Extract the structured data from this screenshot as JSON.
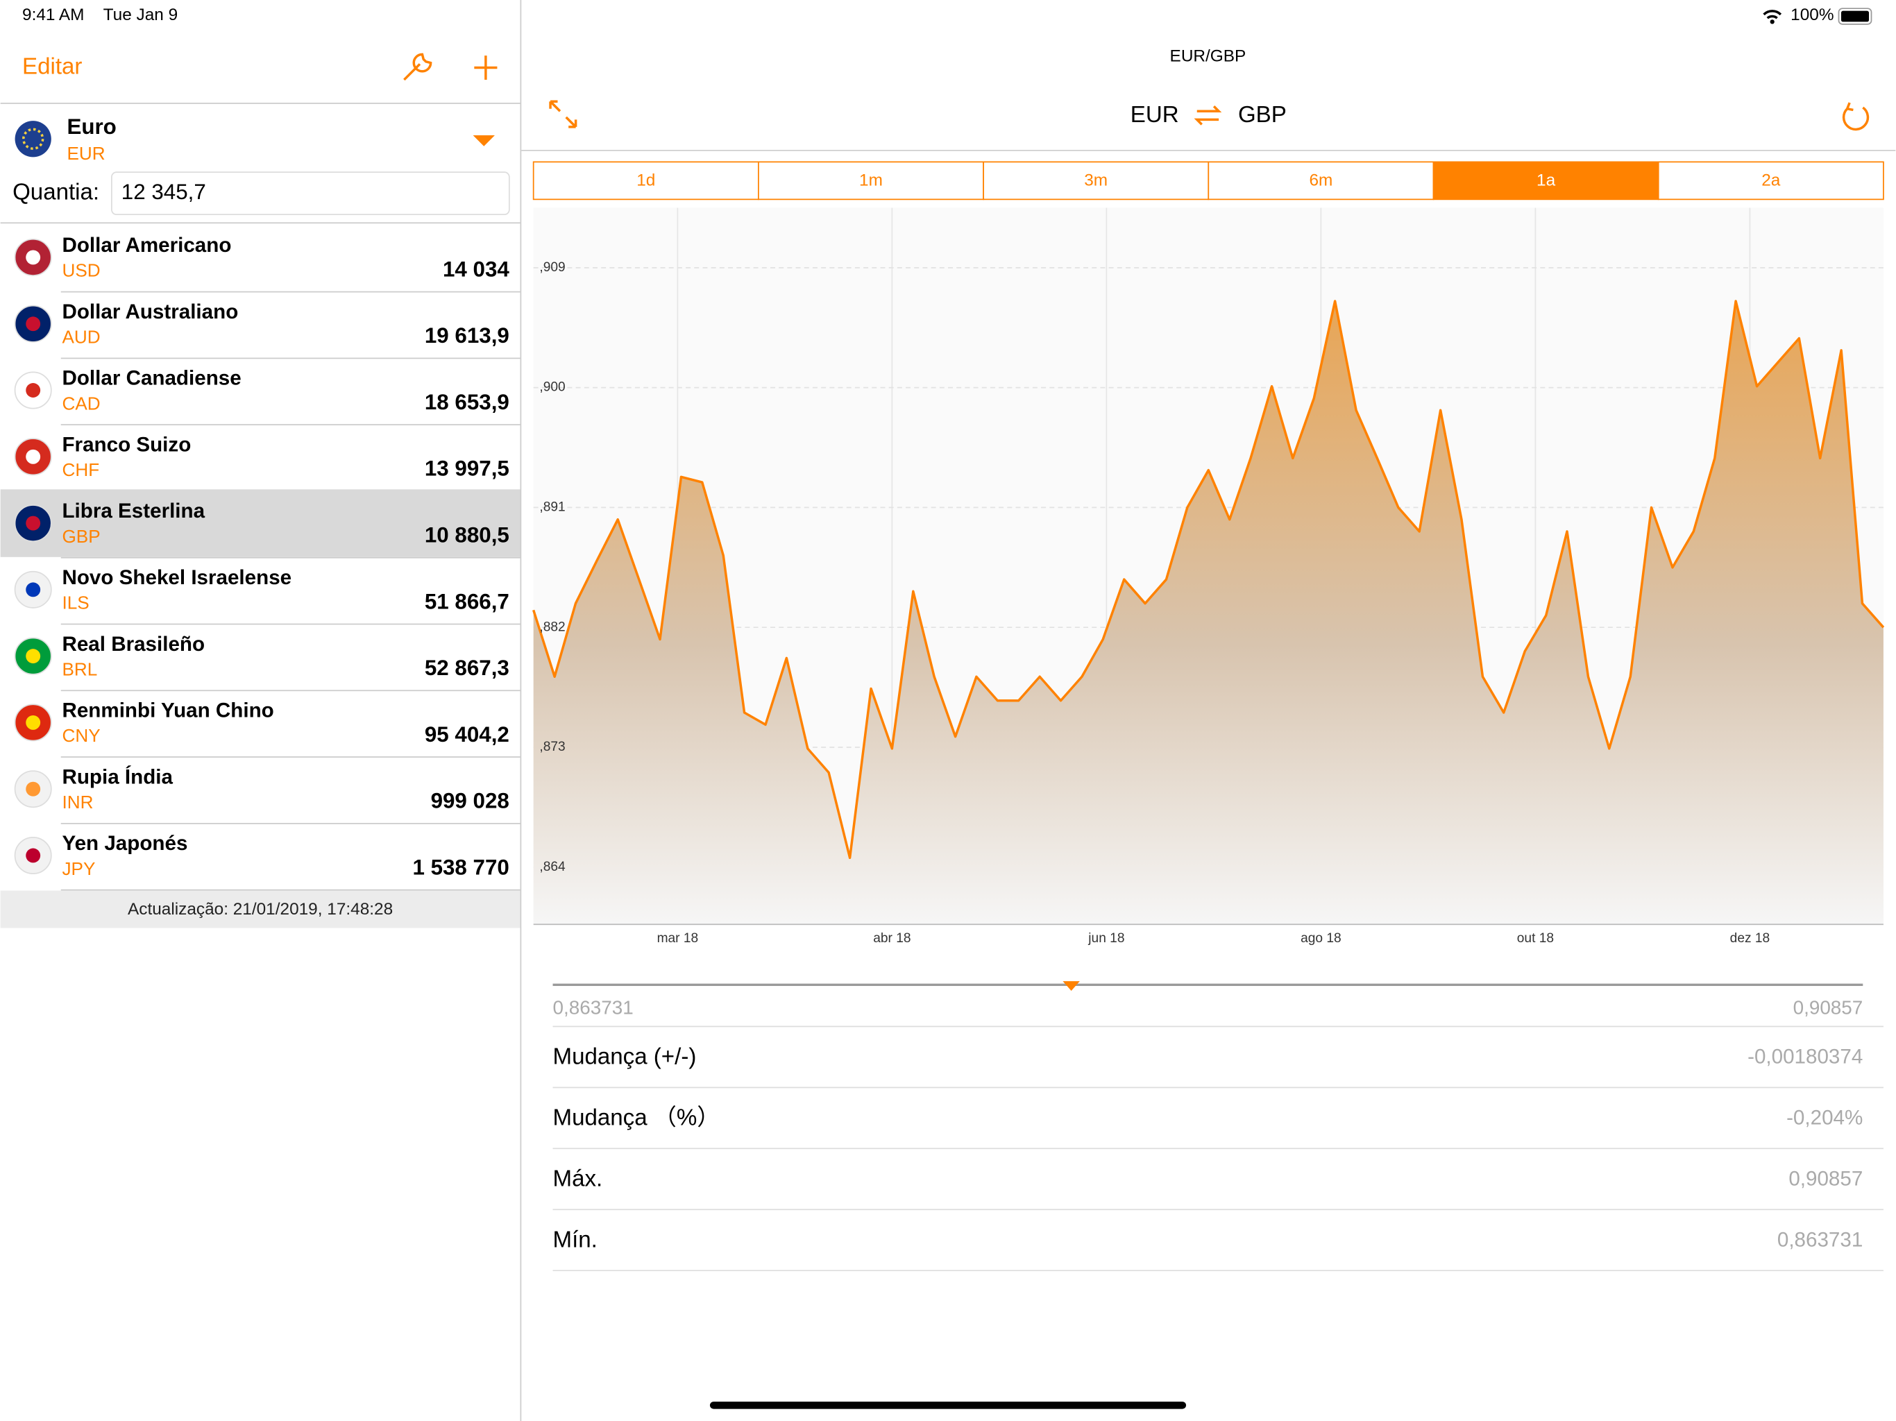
{
  "status_bar": {
    "time": "9:41 AM",
    "date": "Tue Jan 9",
    "battery": "100%"
  },
  "sidebar": {
    "edit": "Editar",
    "base": {
      "name": "Euro",
      "code": "EUR"
    },
    "amount_label": "Quantia:",
    "amount": "12 345,7",
    "rows": [
      {
        "name": "Dollar Americano",
        "code": "USD",
        "value": "14 034"
      },
      {
        "name": "Dollar Australiano",
        "code": "AUD",
        "value": "19 613,9"
      },
      {
        "name": "Dollar Canadiense",
        "code": "CAD",
        "value": "18 653,9"
      },
      {
        "name": "Franco Suizo",
        "code": "CHF",
        "value": "13 997,5"
      },
      {
        "name": "Libra Esterlina",
        "code": "GBP",
        "value": "10 880,5"
      },
      {
        "name": "Novo Shekel Israelense",
        "code": "ILS",
        "value": "51 866,7"
      },
      {
        "name": "Real Brasileño",
        "code": "BRL",
        "value": "52 867,3"
      },
      {
        "name": "Renminbi Yuan Chino",
        "code": "CNY",
        "value": "95 404,2"
      },
      {
        "name": "Rupia Índia",
        "code": "INR",
        "value": "999 028"
      },
      {
        "name": "Yen Japonés",
        "code": "JPY",
        "value": "1 538 770"
      }
    ],
    "selected": 4,
    "footer": "Actualização: 21/01/2019, 17:48:28"
  },
  "detail": {
    "title": "EUR/GBP",
    "from": "EUR",
    "to": "GBP",
    "tabs": [
      "1d",
      "1m",
      "3m",
      "6m",
      "1a",
      "2a"
    ],
    "active_tab": 4,
    "range_min": "0,863731",
    "range_max": "0,90857",
    "stats": [
      {
        "label": "Mudança (+/-)",
        "value": "-0,00180374"
      },
      {
        "label": "Mudança （%）",
        "value": "-0,204%"
      },
      {
        "label": "Máx.",
        "value": "0,90857"
      },
      {
        "label": "Mín.",
        "value": "0,863731"
      }
    ]
  },
  "chart": {
    "type": "area",
    "color": "#ff8200",
    "x": [
      0,
      6,
      12,
      18,
      24,
      30,
      36,
      42,
      48,
      54,
      60,
      66,
      72,
      78,
      84,
      90,
      96,
      102,
      108,
      114,
      120,
      126,
      132,
      138,
      144,
      150,
      156,
      162,
      168,
      174,
      180,
      186,
      192,
      198,
      204,
      210,
      216,
      222,
      228,
      234,
      240,
      246,
      252,
      258,
      264,
      270,
      276,
      282,
      288,
      294,
      300,
      306,
      312,
      318,
      324,
      330,
      336,
      342,
      348,
      354,
      360,
      366,
      372,
      378,
      384
    ],
    "values": [
      0.8833,
      0.8783,
      0.8838,
      0.887,
      0.8901,
      0.8856,
      0.8811,
      0.8933,
      0.8929,
      0.8874,
      0.8756,
      0.8747,
      0.8797,
      0.8729,
      0.8711,
      0.8647,
      0.8774,
      0.8729,
      0.8847,
      0.8783,
      0.8738,
      0.8783,
      0.8765,
      0.8765,
      0.8783,
      0.8765,
      0.8783,
      0.8811,
      0.8856,
      0.8838,
      0.8856,
      0.891,
      0.8938,
      0.8901,
      0.8947,
      0.9001,
      0.8947,
      0.8992,
      0.9065,
      0.8983,
      0.8947,
      0.891,
      0.8892,
      0.8983,
      0.8901,
      0.8783,
      0.8756,
      0.8802,
      0.8829,
      0.8892,
      0.8783,
      0.8729,
      0.8783,
      0.891,
      0.8865,
      0.8892,
      0.8947,
      0.9065,
      0.9001,
      0.9019,
      0.9037,
      0.8947,
      0.9028,
      0.8838,
      0.882
    ],
    "xlim": [
      0,
      384
    ],
    "ylim": [
      0.8597,
      0.9135
    ],
    "xticks": [
      {
        "value": 41,
        "label": "mar 18"
      },
      {
        "value": 102,
        "label": "abr 18"
      },
      {
        "value": 163,
        "label": "jun 18"
      },
      {
        "value": 224,
        "label": "ago 18"
      },
      {
        "value": 285,
        "label": "out 18"
      },
      {
        "value": 346,
        "label": "dez 18"
      }
    ],
    "yticks": [
      {
        "value": 0.864,
        "label": ",864"
      },
      {
        "value": 0.873,
        "label": ",873"
      },
      {
        "value": 0.882,
        "label": ",882"
      },
      {
        "value": 0.891,
        "label": ",891"
      },
      {
        "value": 0.9,
        "label": ",900"
      },
      {
        "value": 0.909,
        "label": ",909"
      }
    ],
    "grid": true
  }
}
